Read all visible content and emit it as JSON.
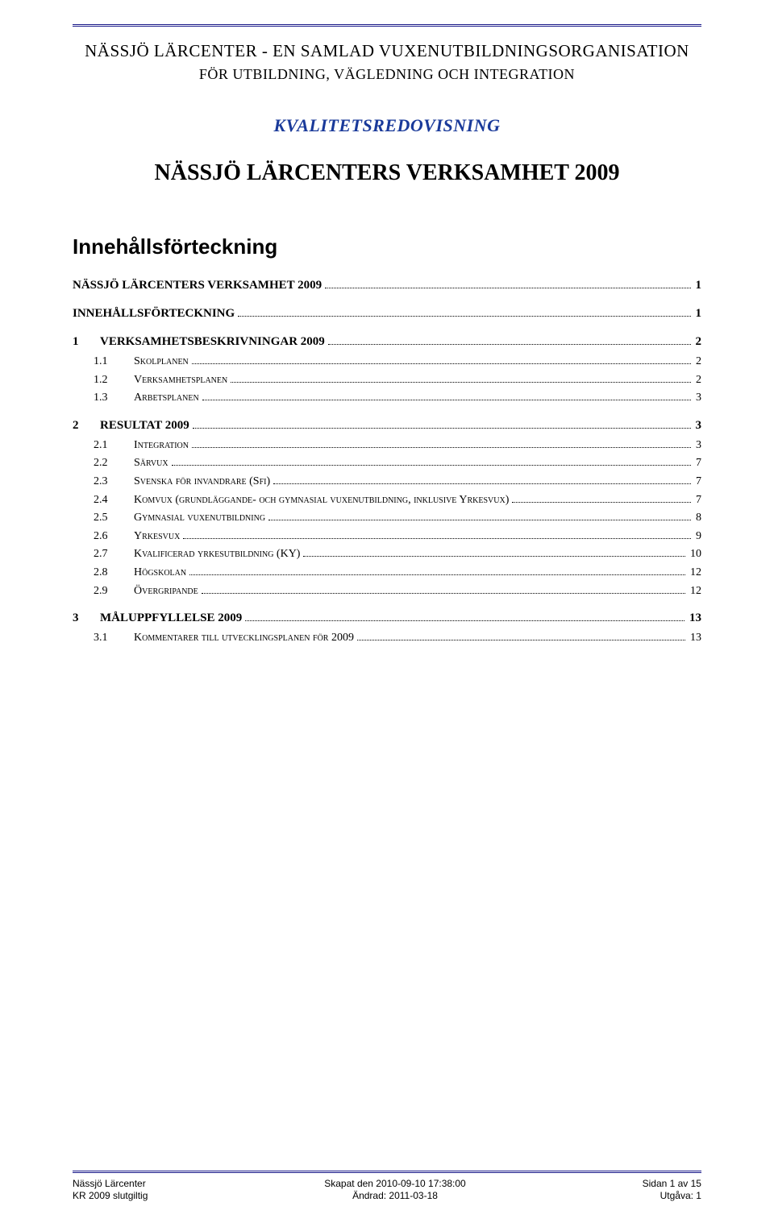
{
  "colors": {
    "rule": "#1a1a8a",
    "kvalitet": "#1a3a9a",
    "text": "#000000",
    "background": "#ffffff"
  },
  "header": {
    "line1": "NÄSSJÖ LÄRCENTER - EN SAMLAD VUXENUTBILDNINGSORGANISATION",
    "line2": "FÖR UTBILDNING, VÄGLEDNING OCH INTEGRATION"
  },
  "kvalitet": "KVALITETSREDOVISNING",
  "main_title": "NÄSSJÖ LÄRCENTERS VERKSAMHET 2009",
  "toc_heading": "Innehållsförteckning",
  "toc": [
    {
      "level": 1,
      "num": "",
      "label": "NÄSSJÖ LÄRCENTERS VERKSAMHET 2009",
      "page": "1"
    },
    {
      "level": 1,
      "num": "",
      "label": "INNEHÅLLSFÖRTECKNING",
      "page": "1"
    },
    {
      "level": 1,
      "num": "1",
      "label": "VERKSAMHETSBESKRIVNINGAR 2009",
      "page": "2"
    },
    {
      "level": 2,
      "num": "1.1",
      "label": "Skolplanen",
      "page": "2"
    },
    {
      "level": 2,
      "num": "1.2",
      "label": "Verksamhetsplanen",
      "page": "2"
    },
    {
      "level": 2,
      "num": "1.3",
      "label": "Arbetsplanen",
      "page": "3"
    },
    {
      "level": 1,
      "num": "2",
      "label": "RESULTAT 2009",
      "page": "3"
    },
    {
      "level": 2,
      "num": "2.1",
      "label": "Integration",
      "page": "3"
    },
    {
      "level": 2,
      "num": "2.2",
      "label": "Särvux",
      "page": "7"
    },
    {
      "level": 2,
      "num": "2.3",
      "label": "Svenska för invandrare (Sfi)",
      "page": "7"
    },
    {
      "level": 2,
      "num": "2.4",
      "label": "Komvux (grundläggande- och gymnasial vuxenutbildning, inklusive Yrkesvux)",
      "page": "7"
    },
    {
      "level": 2,
      "num": "2.5",
      "label": "Gymnasial vuxenutbildning",
      "page": "8"
    },
    {
      "level": 2,
      "num": "2.6",
      "label": "Yrkesvux",
      "page": "9"
    },
    {
      "level": 2,
      "num": "2.7",
      "label": "Kvalificerad yrkesutbildning (KY)",
      "page": "10"
    },
    {
      "level": 2,
      "num": "2.8",
      "label": "Högskolan",
      "page": "12"
    },
    {
      "level": 2,
      "num": "2.9",
      "label": "Övergripande",
      "page": "12"
    },
    {
      "level": 1,
      "num": "3",
      "label": "MÅLUPPFYLLELSE 2009",
      "page": "13"
    },
    {
      "level": 2,
      "num": "3.1",
      "label": "Kommentarer till utvecklingsplanen för 2009",
      "page": "13"
    }
  ],
  "footer": {
    "left1": "Nässjö Lärcenter",
    "left2": "KR 2009 slutgiltig",
    "center1": "Skapat den 2010-09-10 17:38:00",
    "center2": "Ändrad: 2011-03-18",
    "right1": "Sidan 1 av 15",
    "right2": "Utgåva: 1"
  }
}
